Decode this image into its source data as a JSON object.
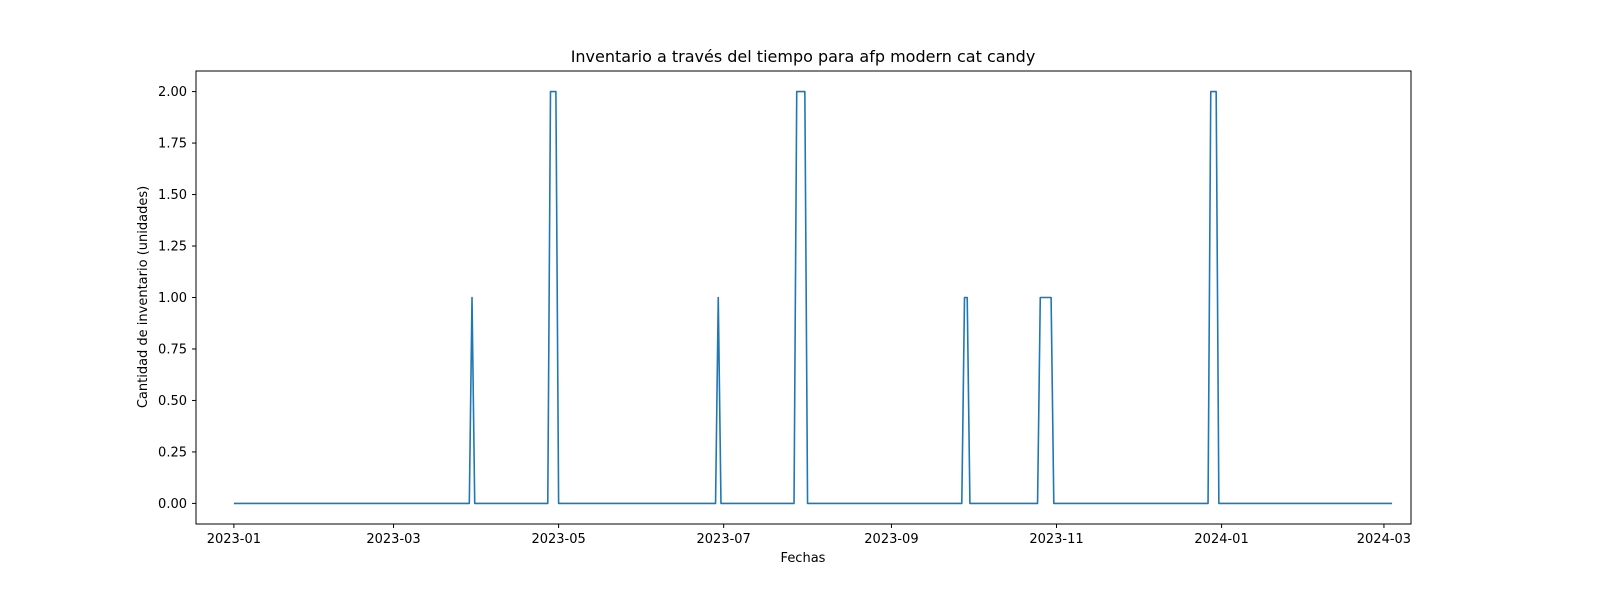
{
  "chart_data": {
    "type": "line",
    "title": "Inventario a través del tiempo para afp modern cat candy",
    "xlabel": "Fechas",
    "ylabel": "Cantidad de inventario (unidades)",
    "x_ticks": [
      "2023-01",
      "2023-03",
      "2023-05",
      "2023-07",
      "2023-09",
      "2023-11",
      "2024-01",
      "2024-03"
    ],
    "y_ticks": [
      "0.00",
      "0.25",
      "0.50",
      "0.75",
      "1.00",
      "1.25",
      "1.50",
      "1.75",
      "2.00"
    ],
    "xlim": [
      "2022-12-18",
      "2024-03-11"
    ],
    "ylim": [
      -0.1,
      2.1
    ],
    "grid": false,
    "series": [
      {
        "color": "#1f77b4",
        "points": [
          [
            "2023-01-01",
            0
          ],
          [
            "2023-03-29",
            0
          ],
          [
            "2023-03-30",
            1
          ],
          [
            "2023-03-31",
            0
          ],
          [
            "2023-04-27",
            0
          ],
          [
            "2023-04-28",
            2
          ],
          [
            "2023-04-30",
            2
          ],
          [
            "2023-05-01",
            0
          ],
          [
            "2023-06-28",
            0
          ],
          [
            "2023-06-29",
            1
          ],
          [
            "2023-06-30",
            0
          ],
          [
            "2023-07-27",
            0
          ],
          [
            "2023-07-28",
            2
          ],
          [
            "2023-07-31",
            2
          ],
          [
            "2023-08-01",
            0
          ],
          [
            "2023-09-27",
            0
          ],
          [
            "2023-09-28",
            1
          ],
          [
            "2023-09-29",
            1
          ],
          [
            "2023-09-30",
            0
          ],
          [
            "2023-10-25",
            0
          ],
          [
            "2023-10-26",
            1
          ],
          [
            "2023-10-30",
            1
          ],
          [
            "2023-10-31",
            0
          ],
          [
            "2023-12-27",
            0
          ],
          [
            "2023-12-28",
            2
          ],
          [
            "2023-12-30",
            2
          ],
          [
            "2023-12-31",
            0
          ],
          [
            "2024-03-04",
            0
          ]
        ]
      }
    ]
  }
}
